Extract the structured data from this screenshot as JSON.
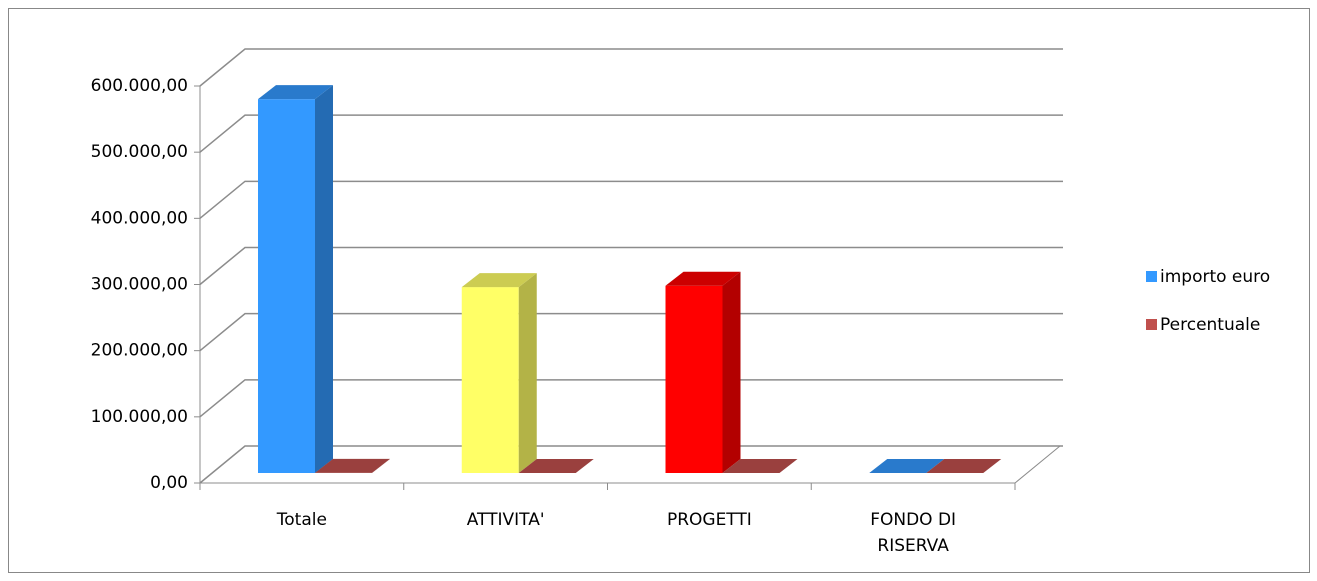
{
  "chart_data": {
    "type": "bar3d",
    "categories": [
      "Totale",
      "ATTIVITA'",
      "PROGETTI",
      "FONDO DI RISERVA"
    ],
    "series": [
      {
        "name": "importo euro",
        "color": "#3399ff",
        "point_colors": [
          "#3399ff",
          "#ffff66",
          "#ff0000",
          "#3399ff"
        ],
        "values": [
          565000,
          281000,
          283000,
          0
        ]
      },
      {
        "name": "Percentuale",
        "color": "#c0504d",
        "values": [
          100,
          50,
          50,
          0
        ]
      }
    ],
    "ylim": [
      0,
      600000
    ],
    "yticks": [
      {
        "value": 0,
        "label": "0,00"
      },
      {
        "value": 100000,
        "label": "100.000,00"
      },
      {
        "value": 200000,
        "label": "200.000,00"
      },
      {
        "value": 300000,
        "label": "300.000,00"
      },
      {
        "value": 400000,
        "label": "400.000,00"
      },
      {
        "value": 500000,
        "label": "500.000,00"
      },
      {
        "value": 600000,
        "label": "600.000,00"
      }
    ],
    "grid": true,
    "legend": "right"
  }
}
